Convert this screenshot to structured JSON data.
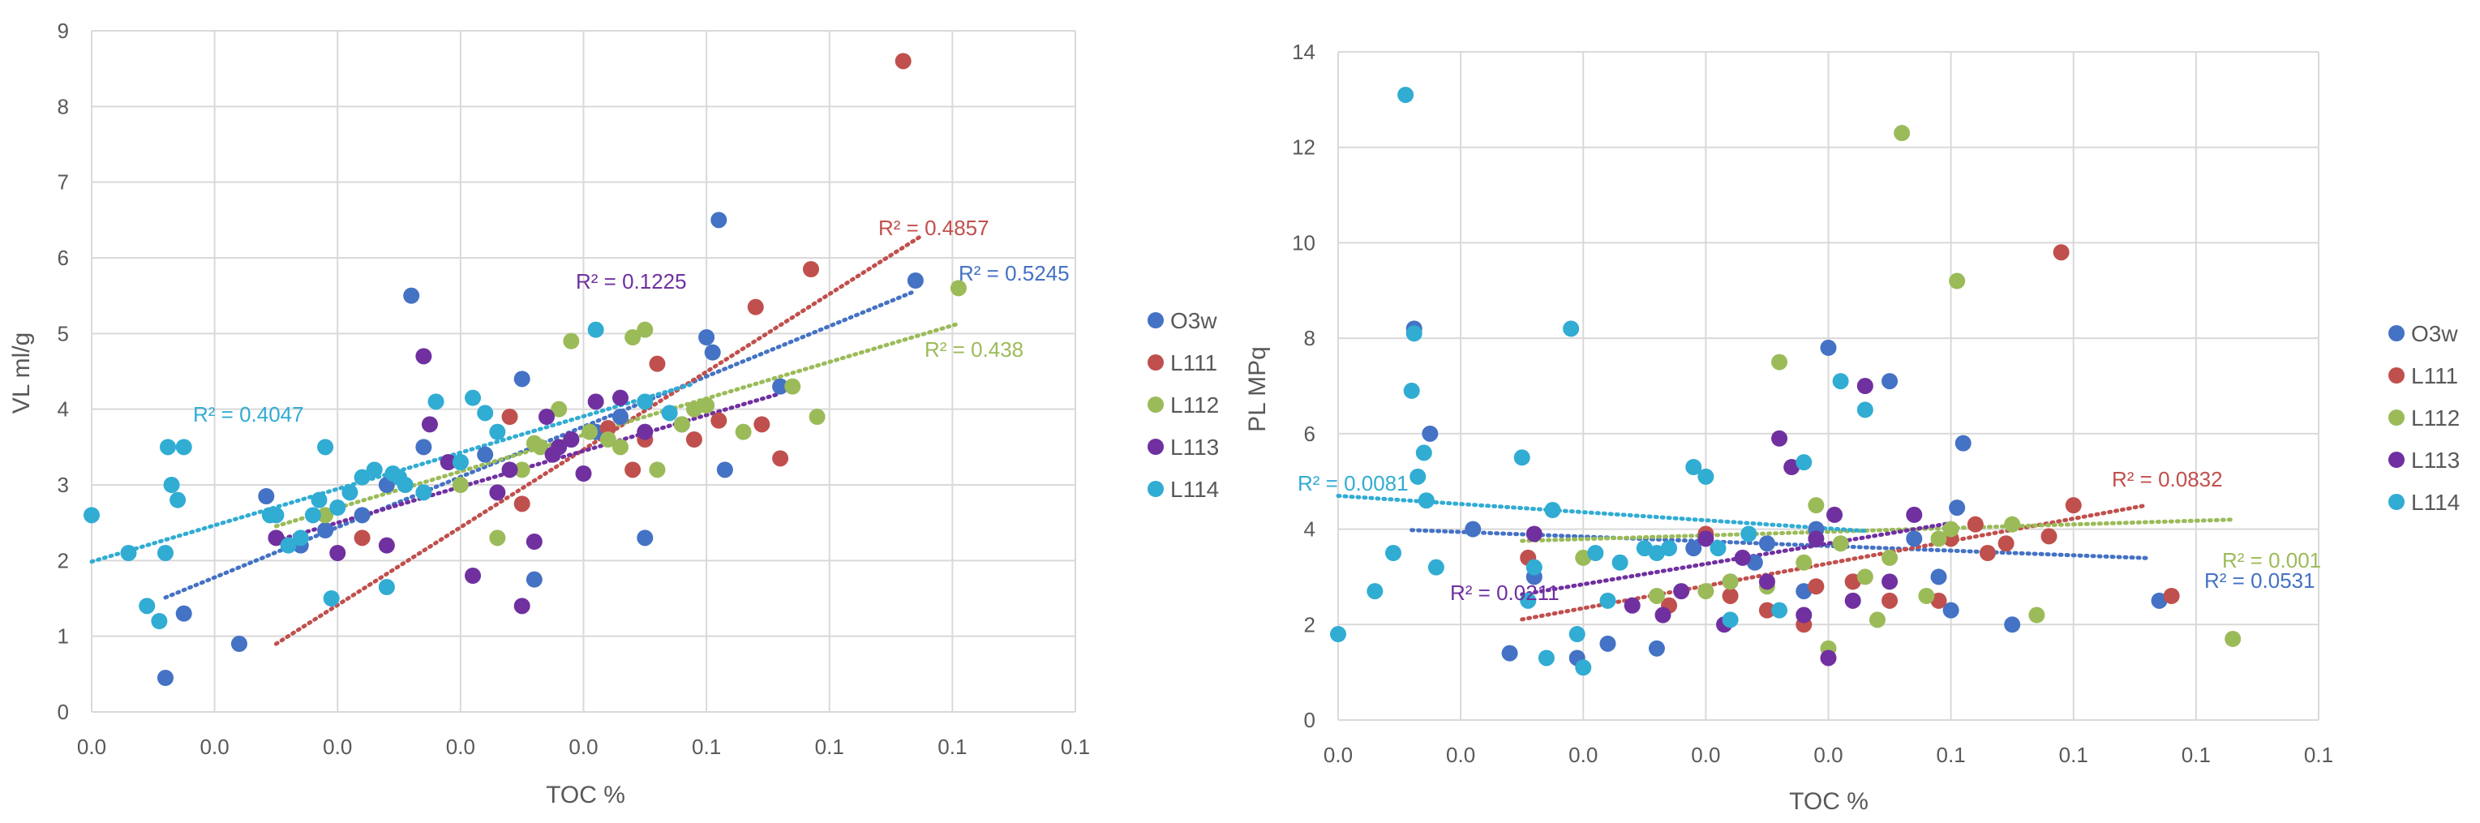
{
  "chart_data": [
    {
      "type": "scatter",
      "xlabel": "TOC %",
      "ylabel": "VL ml/g",
      "xlim": [
        0,
        8
      ],
      "ylim": [
        0,
        9
      ],
      "xticks": [
        0,
        1,
        2,
        3,
        4,
        5,
        6,
        7,
        8
      ],
      "xtick_labels": [
        "0.0",
        "0.0",
        "0.0",
        "0.0",
        "0.0",
        "0.1",
        "0.1",
        "0.1",
        "0.1"
      ],
      "ytick_labels": [
        "0",
        "1",
        "2",
        "3",
        "4",
        "5",
        "6",
        "7",
        "8",
        "9"
      ],
      "grid": true,
      "legend_position": "right",
      "series": [
        {
          "name": "O3w",
          "color": "#4472C4",
          "points": [
            [
              0.6,
              0.45
            ],
            [
              0.75,
              1.3
            ],
            [
              1.2,
              0.9
            ],
            [
              1.42,
              2.85
            ],
            [
              1.7,
              2.2
            ],
            [
              1.9,
              2.4
            ],
            [
              2.2,
              2.6
            ],
            [
              2.4,
              3.0
            ],
            [
              2.6,
              5.5
            ],
            [
              2.7,
              3.5
            ],
            [
              3.0,
              3.3
            ],
            [
              3.2,
              3.4
            ],
            [
              3.5,
              4.4
            ],
            [
              3.6,
              1.75
            ],
            [
              3.9,
              3.6
            ],
            [
              4.1,
              3.7
            ],
            [
              4.3,
              3.9
            ],
            [
              4.5,
              2.3
            ],
            [
              4.8,
              3.8
            ],
            [
              5.0,
              4.95
            ],
            [
              5.05,
              4.75
            ],
            [
              5.1,
              6.5
            ],
            [
              5.15,
              3.2
            ],
            [
              5.6,
              4.3
            ],
            [
              6.7,
              5.7
            ]
          ],
          "trend": {
            "x0": 0.6,
            "x1": 6.7,
            "r2_label": "R² = 0.5245"
          }
        },
        {
          "name": "L111",
          "color": "#C0504D",
          "points": [
            [
              2.2,
              2.3
            ],
            [
              3.4,
              3.9
            ],
            [
              3.5,
              2.75
            ],
            [
              4.2,
              3.75
            ],
            [
              4.4,
              3.2
            ],
            [
              4.5,
              3.6
            ],
            [
              4.6,
              4.6
            ],
            [
              4.9,
              3.6
            ],
            [
              5.1,
              3.85
            ],
            [
              5.4,
              5.35
            ],
            [
              5.45,
              3.8
            ],
            [
              5.6,
              3.35
            ],
            [
              5.85,
              5.85
            ],
            [
              6.6,
              8.6
            ]
          ],
          "trend": {
            "x0": 1.5,
            "x1": 6.75,
            "r2_label": "R² = 0.4857"
          }
        },
        {
          "name": "L112",
          "color": "#9BBB59",
          "points": [
            [
              1.9,
              2.6
            ],
            [
              3.0,
              3.0
            ],
            [
              3.3,
              2.3
            ],
            [
              3.5,
              3.2
            ],
            [
              3.6,
              3.55
            ],
            [
              3.65,
              3.5
            ],
            [
              3.8,
              4.0
            ],
            [
              3.9,
              4.9
            ],
            [
              4.05,
              3.7
            ],
            [
              4.2,
              3.6
            ],
            [
              4.3,
              3.5
            ],
            [
              4.4,
              4.95
            ],
            [
              4.5,
              5.05
            ],
            [
              4.6,
              3.2
            ],
            [
              4.8,
              3.8
            ],
            [
              4.9,
              4.0
            ],
            [
              5.0,
              4.05
            ],
            [
              5.3,
              3.7
            ],
            [
              5.7,
              4.3
            ],
            [
              5.9,
              3.9
            ],
            [
              7.05,
              5.6
            ]
          ],
          "trend": {
            "x0": 1.5,
            "x1": 7.05,
            "r2_label": "R² = 0.438"
          }
        },
        {
          "name": "L113",
          "color": "#7030A0",
          "points": [
            [
              1.5,
              2.3
            ],
            [
              2.0,
              2.1
            ],
            [
              2.4,
              2.2
            ],
            [
              2.7,
              4.7
            ],
            [
              2.75,
              3.8
            ],
            [
              2.9,
              3.3
            ],
            [
              3.1,
              1.8
            ],
            [
              3.3,
              2.9
            ],
            [
              3.4,
              3.2
            ],
            [
              3.5,
              1.4
            ],
            [
              3.6,
              2.25
            ],
            [
              3.7,
              3.9
            ],
            [
              3.75,
              3.4
            ],
            [
              3.8,
              3.5
            ],
            [
              3.9,
              3.6
            ],
            [
              4.0,
              3.15
            ],
            [
              4.1,
              4.1
            ],
            [
              4.3,
              4.15
            ],
            [
              4.5,
              3.7
            ]
          ],
          "trend": {
            "x0": 1.5,
            "x1": 5.6,
            "r2_label": "R² = 0.1225"
          }
        },
        {
          "name": "L114",
          "color": "#31ACD3",
          "points": [
            [
              0.0,
              2.6
            ],
            [
              0.3,
              2.1
            ],
            [
              0.45,
              1.4
            ],
            [
              0.55,
              1.2
            ],
            [
              0.6,
              2.1
            ],
            [
              0.62,
              3.5
            ],
            [
              0.65,
              3.0
            ],
            [
              0.7,
              2.8
            ],
            [
              0.75,
              3.5
            ],
            [
              1.45,
              2.6
            ],
            [
              1.5,
              2.6
            ],
            [
              1.6,
              2.2
            ],
            [
              1.7,
              2.3
            ],
            [
              1.8,
              2.6
            ],
            [
              1.85,
              2.8
            ],
            [
              1.9,
              3.5
            ],
            [
              1.95,
              1.5
            ],
            [
              2.0,
              2.7
            ],
            [
              2.1,
              2.9
            ],
            [
              2.2,
              3.1
            ],
            [
              2.3,
              3.2
            ],
            [
              2.4,
              1.65
            ],
            [
              2.45,
              3.15
            ],
            [
              2.5,
              3.1
            ],
            [
              2.55,
              3.0
            ],
            [
              2.7,
              2.9
            ],
            [
              2.8,
              4.1
            ],
            [
              3.0,
              3.3
            ],
            [
              3.1,
              4.15
            ],
            [
              3.2,
              3.95
            ],
            [
              3.3,
              3.7
            ],
            [
              4.1,
              5.05
            ],
            [
              4.5,
              4.1
            ],
            [
              4.7,
              3.95
            ]
          ],
          "trend": {
            "x0": 0.0,
            "x1": 4.9,
            "r2_label": "R² = 0.4047"
          }
        }
      ]
    },
    {
      "type": "scatter",
      "xlabel": "TOC %",
      "ylabel": "PL MPq",
      "xlim": [
        0,
        8
      ],
      "ylim": [
        0,
        14
      ],
      "xticks": [
        0,
        1,
        2,
        3,
        4,
        5,
        6,
        7,
        8
      ],
      "xtick_labels": [
        "0.0",
        "0.0",
        "0.0",
        "0.0",
        "0.0",
        "0.1",
        "0.1",
        "0.1",
        "0.1"
      ],
      "ytick_labels": [
        "0",
        "2",
        "4",
        "6",
        "8",
        "10",
        "12",
        "14"
      ],
      "grid": true,
      "legend_position": "right",
      "series": [
        {
          "name": "O3w",
          "color": "#4472C4",
          "points": [
            [
              0.62,
              8.2
            ],
            [
              0.75,
              6.0
            ],
            [
              1.1,
              4.0
            ],
            [
              1.4,
              1.4
            ],
            [
              1.6,
              3.0
            ],
            [
              1.95,
              1.3
            ],
            [
              2.2,
              1.6
            ],
            [
              2.6,
              1.5
            ],
            [
              2.9,
              3.6
            ],
            [
              3.2,
              2.9
            ],
            [
              3.4,
              3.3
            ],
            [
              3.5,
              3.7
            ],
            [
              3.8,
              2.7
            ],
            [
              3.9,
              4.0
            ],
            [
              4.0,
              7.8
            ],
            [
              4.2,
              2.9
            ],
            [
              4.5,
              7.1
            ],
            [
              4.7,
              3.8
            ],
            [
              4.9,
              3.0
            ],
            [
              5.0,
              2.3
            ],
            [
              5.05,
              4.45
            ],
            [
              5.1,
              5.8
            ],
            [
              5.5,
              2.0
            ],
            [
              6.7,
              2.5
            ]
          ],
          "trend": {
            "x0": 0.6,
            "x1": 6.6,
            "r2_label": "R² = 0.0531"
          }
        },
        {
          "name": "L111",
          "color": "#C0504D",
          "points": [
            [
              1.55,
              3.4
            ],
            [
              2.7,
              2.4
            ],
            [
              3.0,
              3.9
            ],
            [
              3.2,
              2.6
            ],
            [
              3.5,
              2.3
            ],
            [
              3.8,
              2.0
            ],
            [
              3.9,
              2.8
            ],
            [
              4.2,
              2.9
            ],
            [
              4.5,
              2.5
            ],
            [
              4.9,
              2.5
            ],
            [
              5.0,
              3.8
            ],
            [
              5.2,
              4.1
            ],
            [
              5.3,
              3.5
            ],
            [
              5.45,
              3.7
            ],
            [
              5.8,
              3.85
            ],
            [
              5.9,
              9.8
            ],
            [
              6.0,
              4.5
            ],
            [
              6.8,
              2.6
            ]
          ],
          "trend": {
            "x0": 1.5,
            "x1": 6.6,
            "r2_label": "R² = 0.0832"
          }
        },
        {
          "name": "L112",
          "color": "#9BBB59",
          "points": [
            [
              2.0,
              3.4
            ],
            [
              2.6,
              2.6
            ],
            [
              3.0,
              2.7
            ],
            [
              3.2,
              2.9
            ],
            [
              3.5,
              2.8
            ],
            [
              3.6,
              7.5
            ],
            [
              3.8,
              3.3
            ],
            [
              3.9,
              4.5
            ],
            [
              4.0,
              1.5
            ],
            [
              4.1,
              3.7
            ],
            [
              4.3,
              3.0
            ],
            [
              4.4,
              2.1
            ],
            [
              4.5,
              3.4
            ],
            [
              4.6,
              12.3
            ],
            [
              4.8,
              2.6
            ],
            [
              4.9,
              3.8
            ],
            [
              5.0,
              4.0
            ],
            [
              5.05,
              9.2
            ],
            [
              5.5,
              4.1
            ],
            [
              5.7,
              2.2
            ],
            [
              7.3,
              1.7
            ]
          ],
          "trend": {
            "x0": 1.5,
            "x1": 7.3,
            "r2_label": "R² = 0.001"
          }
        },
        {
          "name": "L113",
          "color": "#7030A0",
          "points": [
            [
              1.6,
              3.9
            ],
            [
              2.4,
              2.4
            ],
            [
              2.65,
              2.2
            ],
            [
              2.8,
              2.7
            ],
            [
              3.0,
              3.8
            ],
            [
              3.15,
              2.0
            ],
            [
              3.3,
              3.4
            ],
            [
              3.5,
              2.9
            ],
            [
              3.6,
              5.9
            ],
            [
              3.7,
              5.3
            ],
            [
              3.8,
              2.2
            ],
            [
              3.9,
              3.8
            ],
            [
              4.0,
              1.3
            ],
            [
              4.05,
              4.3
            ],
            [
              4.2,
              2.5
            ],
            [
              4.3,
              7.0
            ],
            [
              4.5,
              2.9
            ],
            [
              4.7,
              4.3
            ]
          ],
          "trend": {
            "x0": 1.5,
            "x1": 5.0,
            "r2_label": "R² = 0.0211"
          }
        },
        {
          "name": "L114",
          "color": "#31ACD3",
          "points": [
            [
              0.0,
              1.8
            ],
            [
              0.3,
              2.7
            ],
            [
              0.45,
              3.5
            ],
            [
              0.55,
              13.1
            ],
            [
              0.6,
              6.9
            ],
            [
              0.62,
              8.1
            ],
            [
              0.65,
              5.1
            ],
            [
              0.7,
              5.6
            ],
            [
              0.72,
              4.6
            ],
            [
              0.8,
              3.2
            ],
            [
              1.5,
              5.5
            ],
            [
              1.55,
              2.5
            ],
            [
              1.6,
              3.2
            ],
            [
              1.7,
              1.3
            ],
            [
              1.75,
              4.4
            ],
            [
              1.9,
              8.2
            ],
            [
              1.95,
              1.8
            ],
            [
              2.0,
              1.1
            ],
            [
              2.1,
              3.5
            ],
            [
              2.2,
              2.5
            ],
            [
              2.3,
              3.3
            ],
            [
              2.5,
              3.6
            ],
            [
              2.6,
              3.5
            ],
            [
              2.7,
              3.6
            ],
            [
              2.9,
              5.3
            ],
            [
              3.0,
              5.1
            ],
            [
              3.1,
              3.6
            ],
            [
              3.2,
              2.1
            ],
            [
              3.35,
              3.9
            ],
            [
              3.6,
              2.3
            ],
            [
              3.8,
              5.4
            ],
            [
              4.1,
              7.1
            ],
            [
              4.3,
              6.5
            ]
          ],
          "trend": {
            "x0": 0.0,
            "x1": 4.3,
            "r2_label": "R² = 0.0081"
          }
        }
      ]
    }
  ]
}
